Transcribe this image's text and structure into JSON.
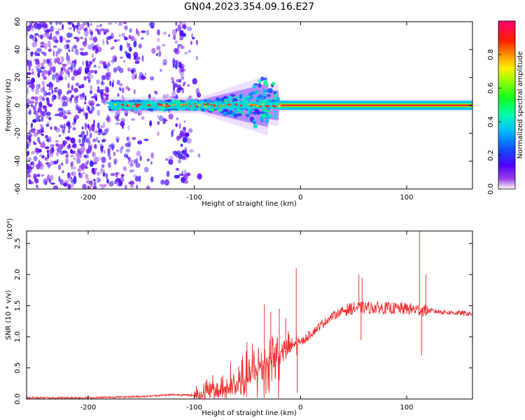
{
  "figure": {
    "title": "GN04.2023.354.09.16.E27"
  },
  "chart_data": [
    {
      "type": "heatmap",
      "xlabel": "Height of straight line (km)",
      "ylabel": "Frequency (Hz)",
      "xlim": [
        -258,
        162
      ],
      "ylim": [
        -60,
        60
      ],
      "xticks": [
        -200,
        -100,
        0,
        100
      ],
      "yticks": [
        60,
        40,
        20,
        0,
        -20,
        -40,
        -60
      ],
      "colorbar": {
        "label": "Normalized spectral amplitude",
        "range": [
          0.0,
          1.0
        ],
        "ticks": [
          0.0,
          0.2,
          0.4,
          0.6,
          0.8
        ],
        "colormap": [
          "#ffffff",
          "#7b00d4",
          "#2a00ff",
          "#0070ff",
          "#00e0ff",
          "#00ff40",
          "#c8ff00",
          "#ffe000",
          "#ff6000",
          "#ff0000",
          "#ff0060"
        ]
      },
      "features": {
        "carrier_center_hz": 0.0,
        "noise_region_km": [
          -258,
          -95
        ],
        "broadening_region_km": [
          -95,
          -20
        ],
        "steady_region_km": [
          -20,
          162
        ],
        "steady_amplitude": 0.92
      }
    },
    {
      "type": "line",
      "xlabel": "Height of straight line (km)",
      "ylabel": "SNR (10 * v/v)",
      "yscale_note": "(x10⁴)",
      "xlim": [
        -258,
        162
      ],
      "ylim": [
        0.0,
        2.7
      ],
      "xticks": [
        -200,
        -100,
        0,
        100
      ],
      "yticks": [
        0.0,
        0.5,
        1.0,
        1.5,
        2.0,
        2.5
      ],
      "color": "#ee3030",
      "trend": [
        {
          "x": -258,
          "y": 0.02
        },
        {
          "x": -200,
          "y": 0.02
        },
        {
          "x": -150,
          "y": 0.04
        },
        {
          "x": -120,
          "y": 0.07
        },
        {
          "x": -100,
          "y": 0.06
        },
        {
          "x": -80,
          "y": 0.12
        },
        {
          "x": -60,
          "y": 0.22
        },
        {
          "x": -45,
          "y": 0.4
        },
        {
          "x": -30,
          "y": 0.62
        },
        {
          "x": -20,
          "y": 0.72
        },
        {
          "x": -10,
          "y": 0.85
        },
        {
          "x": 0,
          "y": 0.9
        },
        {
          "x": 10,
          "y": 1.05
        },
        {
          "x": 20,
          "y": 1.2
        },
        {
          "x": 30,
          "y": 1.33
        },
        {
          "x": 40,
          "y": 1.42
        },
        {
          "x": 50,
          "y": 1.46
        },
        {
          "x": 60,
          "y": 1.47
        },
        {
          "x": 80,
          "y": 1.46
        },
        {
          "x": 100,
          "y": 1.45
        },
        {
          "x": 120,
          "y": 1.42
        },
        {
          "x": 140,
          "y": 1.39
        },
        {
          "x": 162,
          "y": 1.37
        }
      ],
      "spikes": [
        {
          "x": -34,
          "y": 1.52
        },
        {
          "x": -28,
          "y": 1.4
        },
        {
          "x": -20,
          "y": 1.45
        },
        {
          "x": -14,
          "y": 1.3
        },
        {
          "x": -4,
          "y": 2.1
        },
        {
          "x": -3,
          "y": 0.1
        },
        {
          "x": 55,
          "y": 2.0
        },
        {
          "x": 58,
          "y": 1.95
        },
        {
          "x": 57,
          "y": 0.95
        },
        {
          "x": 112,
          "y": 2.7
        },
        {
          "x": 114,
          "y": 0.7
        },
        {
          "x": 118,
          "y": 2.0
        }
      ]
    }
  ]
}
